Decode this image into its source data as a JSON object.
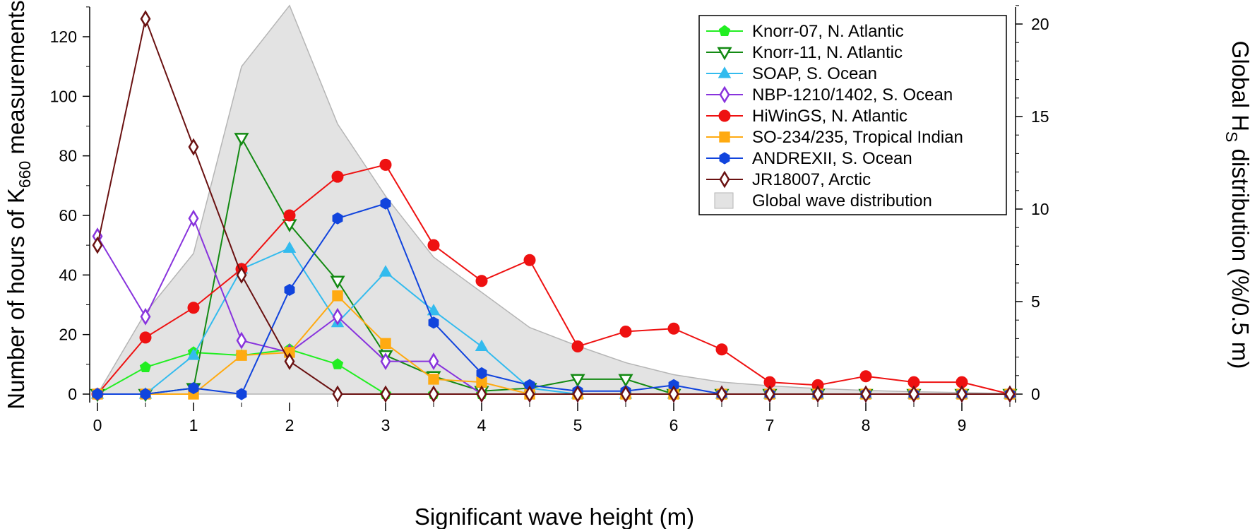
{
  "chart_data": {
    "type": "line",
    "xlabel": "Significant wave height (m)",
    "ylabel_left": {
      "prefix": "Number of hours of K",
      "sub": "660",
      "suffix": " measurements"
    },
    "ylabel_right": {
      "prefix": "Global H",
      "sub": "S",
      "suffix": " distribution (%/0.5 m)"
    },
    "xlim": [
      -0.1,
      9.6
    ],
    "ylim_left": [
      0,
      130
    ],
    "ylim_right": [
      0,
      21
    ],
    "x_ticks": [
      0,
      1,
      2,
      3,
      4,
      5,
      6,
      7,
      8,
      9
    ],
    "y_left_ticks": [
      0,
      20,
      40,
      60,
      80,
      100,
      120
    ],
    "y_right_ticks": [
      0,
      5,
      10,
      15,
      20
    ],
    "legend_position": "top-right",
    "area": {
      "name": "Global wave distribution",
      "color": "#e3e3e3",
      "edge": "#b5b5b5",
      "x": [
        0,
        0.5,
        1,
        1.5,
        2,
        2.5,
        3,
        3.5,
        4,
        4.5,
        5,
        5.5,
        6,
        6.5,
        7,
        7.5,
        8,
        8.5,
        9,
        9.5
      ],
      "values": [
        0,
        4.4,
        7.6,
        17.7,
        21.0,
        14.6,
        10.7,
        7.4,
        5.5,
        3.6,
        2.6,
        1.7,
        1.05,
        0.65,
        0.45,
        0.3,
        0.2,
        0.13,
        0.08,
        0.04
      ]
    },
    "x": [
      0,
      0.5,
      1,
      1.5,
      2,
      2.5,
      3,
      3.5,
      4,
      4.5,
      5,
      5.5,
      6,
      6.5,
      7,
      7.5,
      8,
      8.5,
      9,
      9.5
    ],
    "series": [
      {
        "name": "Knorr-07, N. Atlantic",
        "color": "#22ee22",
        "marker": "pentagon",
        "filled": true,
        "values": [
          0,
          9,
          14,
          13,
          15,
          10,
          0,
          0,
          0,
          0,
          0,
          0,
          0,
          0,
          0,
          0,
          0,
          0,
          0,
          0
        ]
      },
      {
        "name": "Knorr-11, N. Atlantic",
        "color": "#138a13",
        "marker": "triangle-down",
        "filled": false,
        "values": [
          0,
          0,
          2,
          86,
          57,
          38,
          13,
          6,
          1,
          2,
          5,
          5,
          0,
          0,
          0,
          0,
          0,
          0,
          0,
          0
        ]
      },
      {
        "name": "SOAP, S. Ocean",
        "color": "#33bbee",
        "marker": "triangle-up",
        "filled": true,
        "values": [
          0,
          0,
          13,
          42,
          49,
          24,
          41,
          28,
          16,
          2,
          0,
          0,
          0,
          0,
          0,
          0,
          0,
          0,
          0,
          0
        ]
      },
      {
        "name": "NBP-1210/1402, S. Ocean",
        "color": "#8833dd",
        "marker": "diamond",
        "filled": false,
        "values": [
          53,
          26,
          59,
          18,
          14,
          26,
          11,
          11,
          0,
          0,
          0,
          0,
          0,
          0,
          0,
          0,
          0,
          0,
          0,
          0
        ]
      },
      {
        "name": "HiWinGS, N. Atlantic",
        "color": "#ee1111",
        "marker": "circle",
        "filled": true,
        "values": [
          0,
          19,
          29,
          42,
          60,
          73,
          77,
          50,
          38,
          45,
          16,
          21,
          22,
          15,
          4,
          3,
          6,
          4,
          4,
          0
        ]
      },
      {
        "name": "SO-234/235, Tropical Indian",
        "color": "#ffaa11",
        "marker": "square",
        "filled": true,
        "values": [
          0,
          0,
          0,
          13,
          14,
          33,
          17,
          5,
          4,
          0,
          0,
          0,
          0,
          0,
          0,
          0,
          0,
          0,
          0,
          0
        ]
      },
      {
        "name": "ANDREXII, S. Ocean",
        "color": "#1144dd",
        "marker": "hexagon",
        "filled": true,
        "values": [
          0,
          0,
          2,
          0,
          35,
          59,
          64,
          24,
          7,
          3,
          1,
          1,
          3,
          0,
          0,
          0,
          0,
          0,
          0,
          0
        ]
      },
      {
        "name": "JR18007, Arctic",
        "color": "#6a1111",
        "marker": "diamond",
        "filled": false,
        "values": [
          50,
          126,
          83,
          40,
          11,
          0,
          0,
          0,
          0,
          0,
          0,
          0,
          0,
          0,
          0,
          0,
          0,
          0,
          0,
          0
        ]
      }
    ]
  }
}
